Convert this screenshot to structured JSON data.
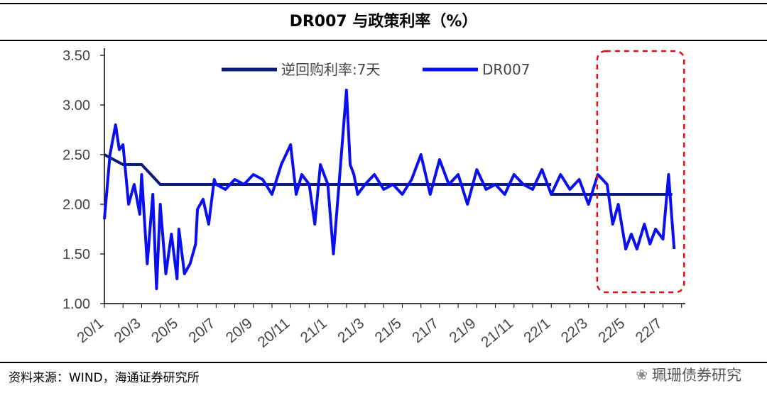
{
  "header": {
    "title": "DR007 与政策利率（%）"
  },
  "footer": {
    "source": "资料来源：WIND，海通证券研究所",
    "watermark": "珮珊债券研究"
  },
  "colors": {
    "policy_rate": "#0c1a78",
    "dr007": "#0a0ff0",
    "highlight_box": "#e01010",
    "axis": "#000000"
  },
  "icons": {
    "watermark": "wechat-icon"
  },
  "chart_data": {
    "type": "line",
    "title": "DR007 与政策利率（%）",
    "xlabel": "",
    "ylabel": "",
    "ylim": [
      1.0,
      3.5
    ],
    "yticks": [
      "1.00",
      "1.50",
      "2.00",
      "2.50",
      "3.00",
      "3.50"
    ],
    "xticks": [
      "20/1",
      "20/3",
      "20/5",
      "20/7",
      "20/9",
      "20/11",
      "21/1",
      "21/3",
      "21/5",
      "21/7",
      "21/9",
      "21/11",
      "22/1",
      "22/3",
      "22/5",
      "22/7"
    ],
    "grid": false,
    "legend": "top",
    "annotation": "dashed red box highlighting 2022/4–2022/7",
    "series": [
      {
        "name": "逆回购利率:7天",
        "x": [
          "20/1",
          "20/2",
          "20/3",
          "20/3.5",
          "20/4",
          "22/7.5"
        ],
        "values": [
          2.5,
          2.4,
          2.4,
          2.3,
          2.2,
          2.2
        ],
        "note_after": "cut to 2.10 in 22/1"
      },
      {
        "name": "DR007",
        "x": [
          "20/1",
          "20/1.3",
          "20/1.6",
          "20/1.8",
          "20/2",
          "20/2.3",
          "20/2.6",
          "20/2.9",
          "20/3",
          "20/3.3",
          "20/3.6",
          "20/3.8",
          "20/4",
          "20/4.3",
          "20/4.6",
          "20/4.9",
          "20/5",
          "20/5.3",
          "20/5.6",
          "20/5.9",
          "20/6",
          "20/6.3",
          "20/6.6",
          "20/6.9",
          "20/7",
          "20/7.5",
          "20/8",
          "20/8.5",
          "20/9",
          "20/9.5",
          "20/10",
          "20/10.5",
          "20/11",
          "20/11.3",
          "20/11.6",
          "20/12",
          "20/12.3",
          "20/12.6",
          "21/1",
          "21/1.3",
          "21/1.6",
          "21/2",
          "21/2.2",
          "21/2.4",
          "21/2.6",
          "21/3",
          "21/3.5",
          "21/4",
          "21/4.5",
          "21/5",
          "21/5.5",
          "21/6",
          "21/6.5",
          "21/7",
          "21/7.5",
          "21/8",
          "21/8.5",
          "21/9",
          "21/9.5",
          "21/10",
          "21/10.5",
          "21/11",
          "21/11.5",
          "21/12",
          "21/12.5",
          "22/1",
          "22/1.5",
          "22/2",
          "22/2.5",
          "22/3",
          "22/3.5",
          "22/4",
          "22/4.3",
          "22/4.6",
          "22/5",
          "22/5.3",
          "22/5.6",
          "22/6",
          "22/6.3",
          "22/6.6",
          "22/7",
          "22/7.3",
          "22/7.6"
        ],
        "values": [
          1.85,
          2.5,
          2.8,
          2.55,
          2.6,
          2.0,
          2.2,
          1.9,
          2.3,
          1.4,
          2.1,
          1.15,
          2.0,
          1.3,
          1.7,
          1.25,
          1.75,
          1.3,
          1.4,
          1.6,
          1.95,
          2.05,
          1.8,
          2.25,
          2.2,
          2.15,
          2.25,
          2.2,
          2.3,
          2.25,
          2.1,
          2.4,
          2.6,
          2.1,
          2.3,
          2.2,
          1.8,
          2.4,
          2.2,
          1.5,
          2.2,
          3.15,
          2.4,
          2.3,
          2.1,
          2.2,
          2.3,
          2.15,
          2.2,
          2.1,
          2.25,
          2.5,
          2.1,
          2.45,
          2.2,
          2.3,
          2.0,
          2.35,
          2.15,
          2.2,
          2.1,
          2.3,
          2.2,
          2.15,
          2.35,
          2.1,
          2.3,
          2.15,
          2.25,
          2.0,
          2.3,
          2.2,
          1.8,
          2.0,
          1.55,
          1.7,
          1.55,
          1.8,
          1.6,
          1.75,
          1.65,
          2.3,
          1.55
        ]
      },
      {
        "name": "逆回购利率:7天 (2022)",
        "x": [
          "22/1",
          "22/7.5"
        ],
        "values": [
          2.1,
          2.1
        ]
      }
    ]
  }
}
